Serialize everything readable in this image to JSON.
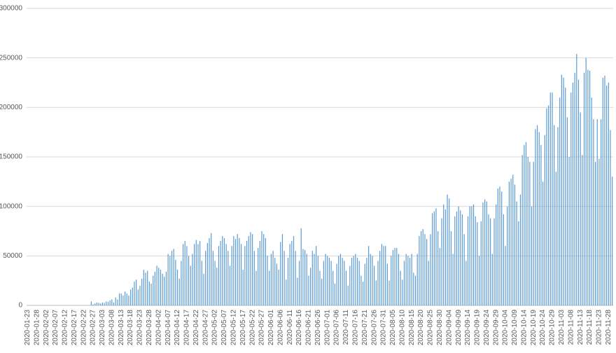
{
  "chart_data": {
    "type": "bar",
    "color": "#5b9bd5",
    "grid": true,
    "ylim": [
      0,
      300000
    ],
    "yticks": [
      0,
      50000,
      100000,
      150000,
      200000,
      250000,
      300000
    ],
    "categories": [
      "2020-01-23",
      null,
      null,
      null,
      null,
      "2020-01-28",
      null,
      null,
      null,
      null,
      "2020-02-02",
      null,
      null,
      null,
      null,
      "2020-02-07",
      null,
      null,
      null,
      null,
      "2020-02-12",
      null,
      null,
      null,
      null,
      "2020-02-17",
      null,
      null,
      null,
      null,
      "2020-02-22",
      null,
      null,
      null,
      null,
      "2020-02-27",
      null,
      null,
      null,
      null,
      "2020-03-03",
      null,
      null,
      null,
      null,
      "2020-03-08",
      null,
      null,
      null,
      null,
      "2020-03-13",
      null,
      null,
      null,
      null,
      "2020-03-18",
      null,
      null,
      null,
      null,
      "2020-03-23",
      null,
      null,
      null,
      null,
      "2020-03-28",
      null,
      null,
      null,
      null,
      "2020-04-02",
      null,
      null,
      null,
      null,
      "2020-04-07",
      null,
      null,
      null,
      null,
      "2020-04-12",
      null,
      null,
      null,
      null,
      "2020-04-17",
      null,
      null,
      null,
      null,
      "2020-04-22",
      null,
      null,
      null,
      null,
      "2020-04-27",
      null,
      null,
      null,
      null,
      "2020-05-02",
      null,
      null,
      null,
      null,
      "2020-05-07",
      null,
      null,
      null,
      null,
      "2020-05-12",
      null,
      null,
      null,
      null,
      "2020-05-17",
      null,
      null,
      null,
      null,
      "2020-05-22",
      null,
      null,
      null,
      null,
      "2020-05-27",
      null,
      null,
      null,
      null,
      "2020-06-01",
      null,
      null,
      null,
      null,
      "2020-06-06",
      null,
      null,
      null,
      null,
      "2020-06-11",
      null,
      null,
      null,
      null,
      "2020-06-16",
      null,
      null,
      null,
      null,
      "2020-06-21",
      null,
      null,
      null,
      null,
      "2020-06-26",
      null,
      null,
      null,
      null,
      "2020-07-01",
      null,
      null,
      null,
      null,
      "2020-07-06",
      null,
      null,
      null,
      null,
      "2020-07-11",
      null,
      null,
      null,
      null,
      "2020-07-16",
      null,
      null,
      null,
      null,
      "2020-07-21",
      null,
      null,
      null,
      null,
      "2020-07-26",
      null,
      null,
      null,
      null,
      "2020-07-31",
      null,
      null,
      null,
      null,
      "2020-08-05",
      null,
      null,
      null,
      null,
      "2020-08-10",
      null,
      null,
      null,
      null,
      "2020-08-15",
      null,
      null,
      null,
      null,
      "2020-08-20",
      null,
      null,
      null,
      null,
      "2020-08-25",
      null,
      null,
      null,
      null,
      "2020-08-30",
      null,
      null,
      null,
      null,
      "2020-09-04",
      null,
      null,
      null,
      null,
      "2020-09-09",
      null,
      null,
      null,
      null,
      "2020-09-14",
      null,
      null,
      null,
      null,
      "2020-09-19",
      null,
      null,
      null,
      null,
      "2020-09-24",
      null,
      null,
      null,
      null,
      "2020-09-29",
      null,
      null,
      null,
      null,
      "2020-10-04",
      null,
      null,
      null,
      null,
      "2020-10-09",
      null,
      null,
      null,
      null,
      "2020-10-14",
      null,
      null,
      null,
      null,
      "2020-10-19",
      null,
      null,
      null,
      null,
      "2020-10-24",
      null,
      null,
      null,
      null,
      "2020-10-29",
      null,
      null,
      null,
      null,
      "2020-11-03",
      null,
      null,
      null,
      null,
      "2020-11-08",
      null,
      null,
      null,
      null,
      "2020-11-13",
      null,
      null,
      null,
      null,
      "2020-11-18",
      null,
      null,
      null,
      null,
      "2020-11-23",
      null,
      null,
      null,
      null,
      "2020-11-28",
      null,
      null
    ],
    "values": [
      0,
      0,
      0,
      0,
      0,
      0,
      0,
      0,
      0,
      0,
      0,
      0,
      0,
      0,
      0,
      0,
      0,
      0,
      0,
      0,
      0,
      0,
      0,
      0,
      0,
      0,
      0,
      0,
      0,
      0,
      0,
      0,
      0,
      0,
      4000,
      1000,
      2000,
      3000,
      2500,
      2000,
      3000,
      2500,
      4000,
      3500,
      5000,
      6000,
      3000,
      8000,
      6000,
      12000,
      12000,
      10000,
      14000,
      12000,
      10000,
      16000,
      18000,
      24000,
      26000,
      16000,
      20000,
      27000,
      36000,
      33000,
      35000,
      24000,
      22000,
      30000,
      34000,
      40000,
      38000,
      36000,
      32000,
      29000,
      34000,
      52000,
      50000,
      55000,
      57000,
      46000,
      36000,
      27000,
      45000,
      62000,
      65000,
      60000,
      50000,
      40000,
      52000,
      62000,
      66000,
      62000,
      65000,
      45000,
      32000,
      55000,
      63000,
      68000,
      73000,
      55000,
      45000,
      38000,
      60000,
      65000,
      70000,
      68000,
      62000,
      55000,
      40000,
      60000,
      70000,
      67000,
      72000,
      68000,
      62000,
      36000,
      60000,
      65000,
      70000,
      74000,
      72000,
      55000,
      35000,
      58000,
      65000,
      75000,
      72000,
      68000,
      50000,
      35000,
      52000,
      55000,
      48000,
      42000,
      36000,
      64000,
      72000,
      55000,
      26000,
      48000,
      62000,
      65000,
      70000,
      55000,
      28000,
      45000,
      78000,
      57000,
      56000,
      52000,
      30000,
      38000,
      55000,
      52000,
      60000,
      50000,
      35000,
      27000,
      45000,
      52000,
      50000,
      48000,
      45000,
      35000,
      22000,
      42000,
      50000,
      52000,
      48000,
      45000,
      35000,
      20000,
      40000,
      48000,
      50000,
      52000,
      48000,
      45000,
      30000,
      24000,
      42000,
      48000,
      60000,
      52000,
      50000,
      40000,
      25000,
      45000,
      55000,
      62000,
      60000,
      60000,
      42000,
      25000,
      50000,
      56000,
      58000,
      58000,
      52000,
      35000,
      26000,
      45000,
      52000,
      50000,
      48000,
      52000,
      33000,
      30000,
      52000,
      70000,
      75000,
      77000,
      72000,
      67000,
      45000,
      72000,
      93000,
      95000,
      98000,
      75000,
      58000,
      88000,
      102000,
      97000,
      112000,
      108000,
      75000,
      52000,
      90000,
      95000,
      100000,
      96000,
      92000,
      72000,
      45000,
      90000,
      100000,
      100000,
      102000,
      90000,
      84000,
      50000,
      85000,
      104000,
      107000,
      105000,
      92000,
      88000,
      52000,
      88000,
      102000,
      118000,
      120000,
      115000,
      92000,
      60000,
      100000,
      125000,
      128000,
      132000,
      122000,
      105000,
      85000,
      112000,
      152000,
      162000,
      165000,
      150000,
      145000,
      100000,
      145000,
      178000,
      182000,
      175000,
      162000,
      125000,
      172000,
      199000,
      202000,
      215000,
      215000,
      182000,
      135000,
      180000,
      210000,
      233000,
      230000,
      220000,
      190000,
      150000,
      215000,
      225000,
      235000,
      254000,
      228000,
      195000,
      152000,
      235000,
      250000,
      238000,
      237000,
      210000,
      188000,
      145000,
      188000,
      148000,
      188000,
      230000,
      232000,
      222000,
      225000,
      177000,
      130000
    ]
  }
}
